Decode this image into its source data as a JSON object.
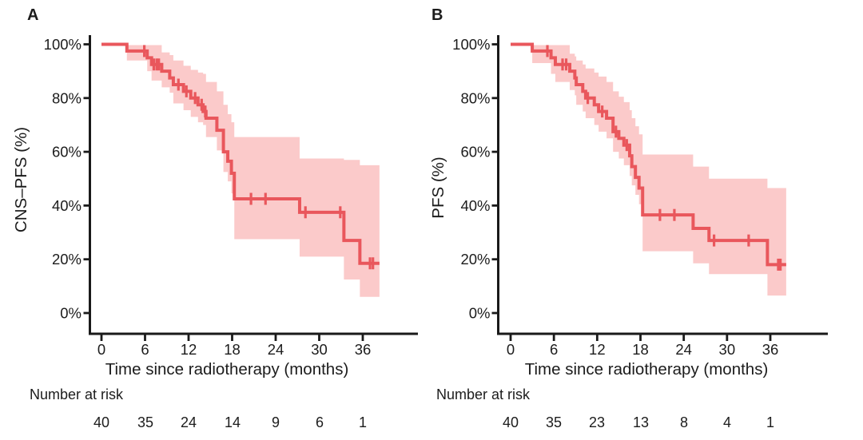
{
  "figure": {
    "background": "#ffffff",
    "line_color": "#e9575c",
    "band_color": "#fbcaca",
    "axis_color": "#1a1a1a",
    "text_color": "#1c1c1c"
  },
  "chart_data": [
    {
      "type": "line",
      "variant": "kaplan-meier-step",
      "panel_label": "A",
      "ylabel": "CNS–PFS (%)",
      "xlabel": "Time since radiotherapy (months)",
      "risk_label": "Number at risk",
      "legend": "none",
      "grid": false,
      "xlim": [
        0,
        36
      ],
      "ylim": [
        0,
        100
      ],
      "xticks": [
        0,
        6,
        12,
        18,
        24,
        30,
        36
      ],
      "ytick_values": [
        0,
        20,
        40,
        60,
        80,
        100
      ],
      "yticks": [
        "0%",
        "20%",
        "40%",
        "60%",
        "80%",
        "100%"
      ],
      "end_time": 38.3,
      "steps": [
        [
          0,
          100
        ],
        [
          3.5,
          97.5
        ],
        [
          6.3,
          95
        ],
        [
          6.9,
          92.5
        ],
        [
          8.3,
          90
        ],
        [
          9.4,
          87.5
        ],
        [
          9.9,
          85
        ],
        [
          11.3,
          82.5
        ],
        [
          12.3,
          80
        ],
        [
          13.3,
          77.5
        ],
        [
          14,
          75
        ],
        [
          14.4,
          72.5
        ],
        [
          15.9,
          68
        ],
        [
          16.8,
          60
        ],
        [
          17.4,
          56.5
        ],
        [
          17.9,
          52
        ],
        [
          18.3,
          42.5
        ],
        [
          27.3,
          37.5
        ],
        [
          33.4,
          27
        ],
        [
          35.6,
          18.5
        ]
      ],
      "censors": [
        [
          5.9,
          97.5
        ],
        [
          7.2,
          92.5
        ],
        [
          7.6,
          92.5
        ],
        [
          7.9,
          92.5
        ],
        [
          10.6,
          85
        ],
        [
          11.7,
          82.5
        ],
        [
          12.9,
          80
        ],
        [
          13.8,
          77.5
        ],
        [
          14.3,
          75
        ],
        [
          20.6,
          42.5
        ],
        [
          22.6,
          42.5
        ],
        [
          28.1,
          37.5
        ],
        [
          32.9,
          37.5
        ],
        [
          37,
          18.5
        ],
        [
          37.4,
          18.5
        ]
      ],
      "band": [
        [
          3.5,
          6.3,
          99.7,
          94
        ],
        [
          6.3,
          6.9,
          99.7,
          90
        ],
        [
          6.9,
          8.3,
          99.7,
          86.5
        ],
        [
          8.3,
          9.4,
          97,
          84
        ],
        [
          9.4,
          9.9,
          96,
          82
        ],
        [
          9.9,
          11.3,
          94,
          78
        ],
        [
          11.3,
          12.3,
          92,
          75.5
        ],
        [
          12.3,
          13.3,
          90.5,
          73
        ],
        [
          13.3,
          14,
          89.5,
          71
        ],
        [
          14,
          14.4,
          89,
          70
        ],
        [
          14.4,
          15.9,
          86,
          65.5
        ],
        [
          15.9,
          16.8,
          82.5,
          60.5
        ],
        [
          16.8,
          17.4,
          77.5,
          52.5
        ],
        [
          17.4,
          17.9,
          74,
          49
        ],
        [
          17.9,
          18.3,
          71,
          44.5
        ],
        [
          18.3,
          27.3,
          65.5,
          27.5
        ],
        [
          27.3,
          33.4,
          57.5,
          21
        ],
        [
          33.4,
          35.6,
          57,
          12.5
        ],
        [
          35.6,
          38.3,
          55,
          6
        ]
      ],
      "number_at_risk": [
        40,
        35,
        24,
        14,
        9,
        6,
        1
      ]
    },
    {
      "type": "line",
      "variant": "kaplan-meier-step",
      "panel_label": "B",
      "ylabel": "PFS (%)",
      "xlabel": "Time since radiotherapy (months)",
      "risk_label": "Number at risk",
      "legend": "none",
      "grid": false,
      "xlim": [
        0,
        36
      ],
      "ylim": [
        0,
        100
      ],
      "xticks": [
        0,
        6,
        12,
        18,
        24,
        30,
        36
      ],
      "ytick_values": [
        0,
        20,
        40,
        60,
        80,
        100
      ],
      "yticks": [
        "0%",
        "20%",
        "40%",
        "60%",
        "80%",
        "100%"
      ],
      "end_time": 38.2,
      "steps": [
        [
          0,
          100
        ],
        [
          3,
          97.5
        ],
        [
          5.6,
          95
        ],
        [
          6.2,
          92.5
        ],
        [
          8.2,
          90
        ],
        [
          8.9,
          87.5
        ],
        [
          9.1,
          85
        ],
        [
          10,
          82.5
        ],
        [
          10.4,
          80
        ],
        [
          11.6,
          77.5
        ],
        [
          12.2,
          75
        ],
        [
          13.3,
          72.5
        ],
        [
          14.2,
          67.5
        ],
        [
          15,
          65
        ],
        [
          15.7,
          62.5
        ],
        [
          16.5,
          58.5
        ],
        [
          16.8,
          54.5
        ],
        [
          17.3,
          50.5
        ],
        [
          17.8,
          46.5
        ],
        [
          18.3,
          36.5
        ],
        [
          25.3,
          31.5
        ],
        [
          27.5,
          27
        ],
        [
          35.6,
          18
        ]
      ],
      "censors": [
        [
          5.1,
          97.5
        ],
        [
          7.2,
          92.5
        ],
        [
          7.7,
          92.5
        ],
        [
          10.7,
          80
        ],
        [
          12.7,
          75
        ],
        [
          14.6,
          67.5
        ],
        [
          16.1,
          62.5
        ],
        [
          20.7,
          36.5
        ],
        [
          22.7,
          36.5
        ],
        [
          28.2,
          27
        ],
        [
          33,
          27
        ],
        [
          37.1,
          18
        ],
        [
          37.4,
          18
        ]
      ],
      "band": [
        [
          3,
          5.6,
          99.7,
          93
        ],
        [
          5.6,
          6.2,
          99.7,
          89
        ],
        [
          6.2,
          8.2,
          99.7,
          86
        ],
        [
          8.2,
          8.9,
          96.5,
          83
        ],
        [
          8.9,
          9.1,
          95.5,
          81
        ],
        [
          9.1,
          10,
          94,
          77.5
        ],
        [
          10,
          10.4,
          92.5,
          75
        ],
        [
          10.4,
          11.6,
          91,
          72.5
        ],
        [
          11.6,
          12.2,
          89.5,
          70
        ],
        [
          12.2,
          13.3,
          88,
          67.5
        ],
        [
          13.3,
          14.2,
          86,
          65
        ],
        [
          14.2,
          15,
          82.5,
          60
        ],
        [
          15,
          15.7,
          80.5,
          57.5
        ],
        [
          15.7,
          16.5,
          78.5,
          55
        ],
        [
          16.5,
          16.8,
          75.5,
          51
        ],
        [
          16.8,
          17.3,
          72.5,
          47.5
        ],
        [
          17.3,
          17.8,
          69.5,
          44
        ],
        [
          17.8,
          18.3,
          66.5,
          40.5
        ],
        [
          18.3,
          25.3,
          59,
          23
        ],
        [
          25.3,
          27.5,
          54.5,
          18.5
        ],
        [
          27.5,
          35.6,
          50,
          14.5
        ],
        [
          35.6,
          38.2,
          46.5,
          6.5
        ]
      ],
      "number_at_risk": [
        40,
        35,
        23,
        13,
        8,
        4,
        1
      ]
    }
  ]
}
